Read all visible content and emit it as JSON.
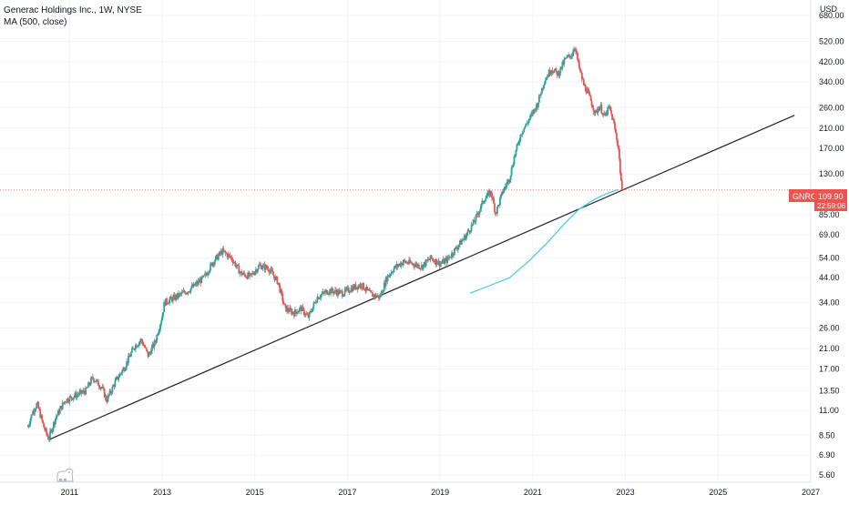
{
  "chart_data": {
    "type": "candlestick",
    "title": "Generac Holdings Inc., 1W, NYSE",
    "indicator": "MA (500, close)",
    "currency": "USD",
    "y_scale": "log",
    "ylim": [
      5.2,
      800
    ],
    "xlim": [
      2009.5,
      2027.0
    ],
    "y_ticks": [
      "680.00",
      "520.00",
      "420.00",
      "340.00",
      "260.00",
      "210.00",
      "170.00",
      "130.00",
      "85.00",
      "69.00",
      "54.00",
      "44.00",
      "34.00",
      "26.00",
      "21.00",
      "17.00",
      "13.50",
      "11.00",
      "8.50",
      "6.90",
      "5.60"
    ],
    "x_ticks": [
      "2011",
      "2013",
      "2015",
      "2017",
      "2019",
      "2021",
      "2023",
      "2025",
      "2027"
    ],
    "price_keypoints": [
      [
        2010.1,
        9.3
      ],
      [
        2010.2,
        10.8
      ],
      [
        2010.3,
        11.8
      ],
      [
        2010.45,
        9.2
      ],
      [
        2010.55,
        8.2
      ],
      [
        2010.7,
        10.2
      ],
      [
        2010.9,
        12.2
      ],
      [
        2011.1,
        12.8
      ],
      [
        2011.35,
        13.5
      ],
      [
        2011.5,
        15.5
      ],
      [
        2011.7,
        14.0
      ],
      [
        2011.8,
        12.2
      ],
      [
        2012.0,
        15.0
      ],
      [
        2012.2,
        17.5
      ],
      [
        2012.4,
        21.5
      ],
      [
        2012.55,
        23.0
      ],
      [
        2012.7,
        19.5
      ],
      [
        2012.85,
        22.5
      ],
      [
        2013.0,
        29.5
      ],
      [
        2013.05,
        34.0
      ],
      [
        2013.3,
        36.0
      ],
      [
        2013.6,
        39.0
      ],
      [
        2013.9,
        44.0
      ],
      [
        2014.1,
        52.0
      ],
      [
        2014.3,
        58.0
      ],
      [
        2014.5,
        54.0
      ],
      [
        2014.7,
        46.0
      ],
      [
        2014.9,
        44.5
      ],
      [
        2015.1,
        50.0
      ],
      [
        2015.3,
        48.5
      ],
      [
        2015.5,
        42.0
      ],
      [
        2015.65,
        32.0
      ],
      [
        2015.85,
        30.5
      ],
      [
        2016.0,
        32.0
      ],
      [
        2016.15,
        29.0
      ],
      [
        2016.35,
        36.0
      ],
      [
        2016.6,
        38.5
      ],
      [
        2016.9,
        37.5
      ],
      [
        2017.1,
        39.5
      ],
      [
        2017.3,
        41.0
      ],
      [
        2017.5,
        37.0
      ],
      [
        2017.7,
        36.0
      ],
      [
        2017.85,
        44.0
      ],
      [
        2018.0,
        48.5
      ],
      [
        2018.2,
        52.0
      ],
      [
        2018.4,
        51.0
      ],
      [
        2018.6,
        49.5
      ],
      [
        2018.8,
        54.0
      ],
      [
        2019.0,
        51.0
      ],
      [
        2019.15,
        53.0
      ],
      [
        2019.35,
        60.0
      ],
      [
        2019.55,
        68.0
      ],
      [
        2019.75,
        80.0
      ],
      [
        2019.95,
        100.0
      ],
      [
        2020.1,
        108.0
      ],
      [
        2020.2,
        86.0
      ],
      [
        2020.35,
        108.0
      ],
      [
        2020.5,
        125.0
      ],
      [
        2020.6,
        155.0
      ],
      [
        2020.75,
        200.0
      ],
      [
        2020.95,
        235.0
      ],
      [
        2021.1,
        270.0
      ],
      [
        2021.25,
        345.0
      ],
      [
        2021.4,
        390.0
      ],
      [
        2021.55,
        370.0
      ],
      [
        2021.7,
        430.0
      ],
      [
        2021.85,
        455.0
      ],
      [
        2021.9,
        500.0
      ],
      [
        2022.0,
        395.0
      ],
      [
        2022.1,
        330.0
      ],
      [
        2022.2,
        300.0
      ],
      [
        2022.35,
        245.0
      ],
      [
        2022.45,
        265.0
      ],
      [
        2022.55,
        235.0
      ],
      [
        2022.65,
        262.0
      ],
      [
        2022.75,
        220.0
      ],
      [
        2022.85,
        170.0
      ],
      [
        2022.9,
        125.0
      ],
      [
        2022.93,
        109.9
      ]
    ],
    "moving_average": [
      [
        2019.65,
        37.5
      ],
      [
        2020.0,
        40.0
      ],
      [
        2020.5,
        44.0
      ],
      [
        2020.9,
        52.0
      ],
      [
        2021.3,
        63.0
      ],
      [
        2021.7,
        78.0
      ],
      [
        2022.0,
        90.0
      ],
      [
        2022.3,
        99.0
      ],
      [
        2022.6,
        106.0
      ],
      [
        2022.85,
        110.5
      ]
    ],
    "trendline": {
      "start": [
        2010.55,
        8.1
      ],
      "end": [
        2026.65,
        240.0
      ]
    },
    "last_price": {
      "symbol": "GNRC",
      "value": "109.90",
      "countdown": "22:59:06",
      "raw": 109.9
    },
    "colors": {
      "up": "#26a69a",
      "down": "#ef5350",
      "ma": "#4dd0e1",
      "trendline": "#222222",
      "grid": "#f0f3fa",
      "price_line": "#ef5350"
    }
  }
}
